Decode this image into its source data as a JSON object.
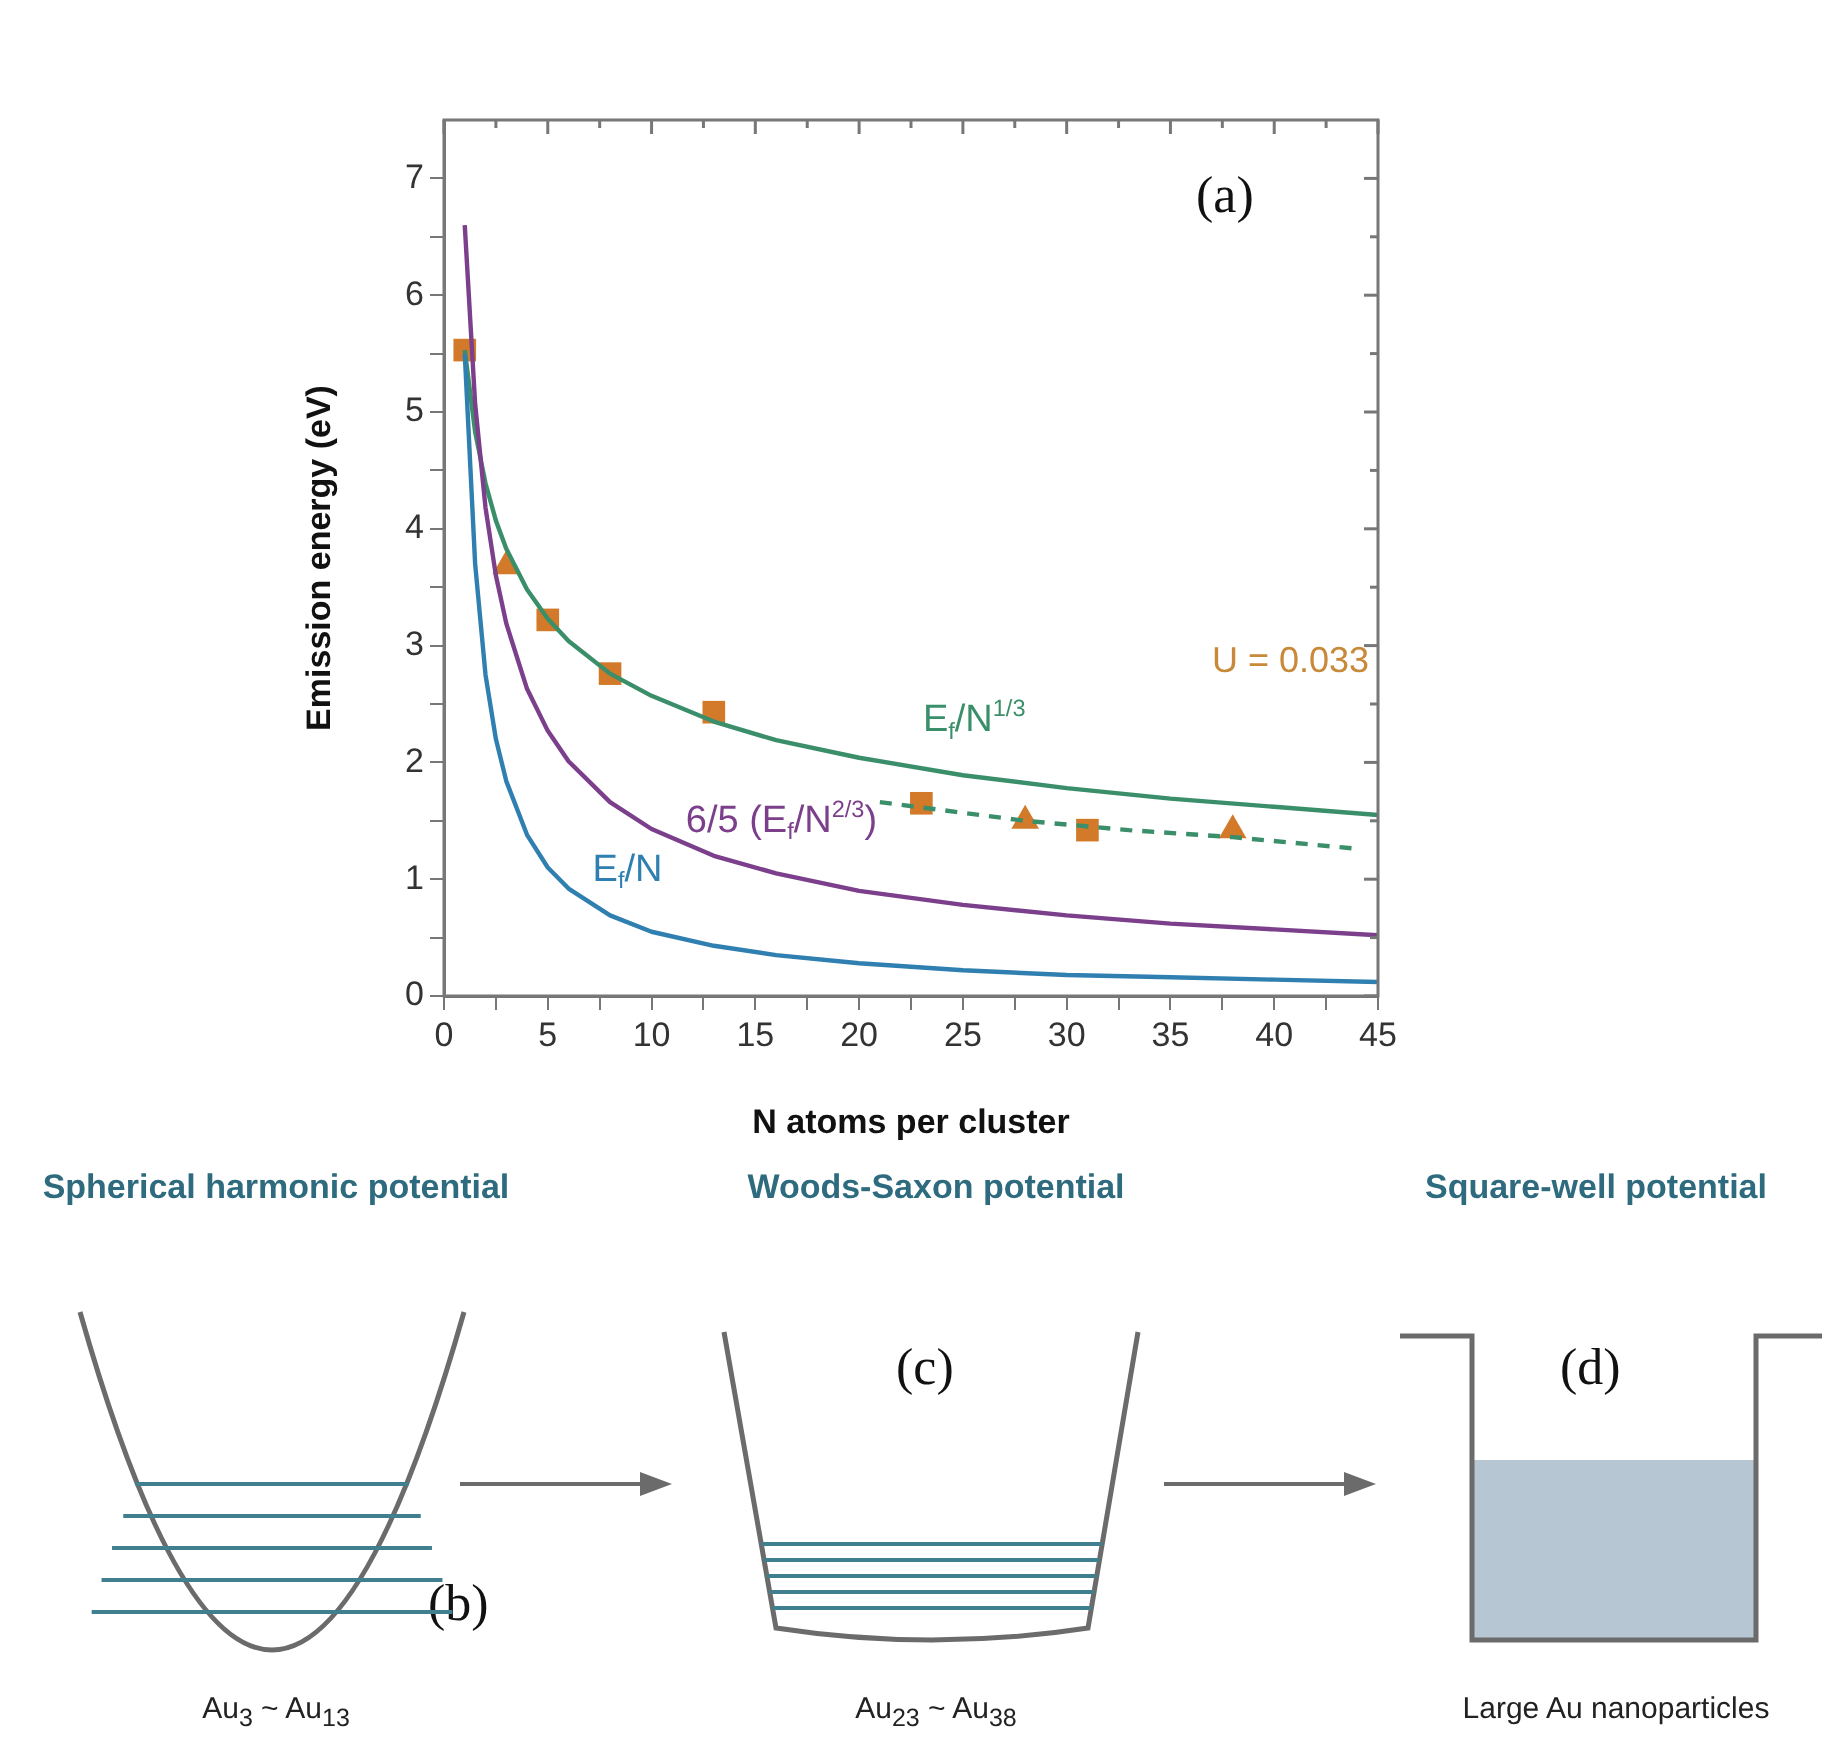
{
  "chart_data": {
    "type": "line",
    "xlabel": "N atoms per cluster",
    "ylabel": "Emission energy (eV)",
    "xlim": [
      0,
      45
    ],
    "xticks": [
      0,
      {
        "value": 2.5,
        "label": null
      },
      5,
      {
        "value": 7.5,
        "label": null
      },
      10,
      {
        "value": 12.5,
        "label": null
      },
      15,
      {
        "value": 17.5,
        "label": null
      },
      20,
      {
        "value": 22.5,
        "label": null
      },
      25,
      {
        "value": 27.5,
        "label": null
      },
      30,
      {
        "value": 32.5,
        "label": null
      },
      35,
      {
        "value": 37.5,
        "label": null
      },
      40,
      {
        "value": 42.5,
        "label": null
      },
      45
    ],
    "ylim": [
      0,
      7.5
    ],
    "yticks": [
      0,
      {
        "value": 0.5,
        "label": null
      },
      1,
      {
        "value": 1.5,
        "label": null
      },
      2,
      {
        "value": 2.5,
        "label": null
      },
      3,
      {
        "value": 3.5,
        "label": null
      },
      4,
      {
        "value": 4.5,
        "label": null
      },
      5,
      {
        "value": 5.5,
        "label": null
      },
      6,
      {
        "value": 6.5,
        "label": null
      },
      7
    ],
    "series": [
      {
        "name": "E$_{f}$/N",
        "color": "#2f7fb0",
        "marker": "none",
        "line_style": "solid",
        "x": [
          1,
          1.5,
          2,
          2.5,
          3,
          4,
          5,
          6,
          8,
          10,
          13,
          16,
          20,
          25,
          30,
          35,
          40,
          45
        ],
        "values": [
          5.5,
          3.7,
          2.75,
          2.2,
          1.84,
          1.38,
          1.1,
          0.92,
          0.69,
          0.55,
          0.43,
          0.35,
          0.28,
          0.22,
          0.18,
          0.16,
          0.14,
          0.12
        ]
      },
      {
        "name": "6/5 (E$_{f}$/N$^{2/3}$)",
        "color": "#7b3f8c",
        "marker": "none",
        "line_style": "solid",
        "x": [
          1,
          1.5,
          2,
          2.5,
          3,
          4,
          5,
          6,
          8,
          10,
          13,
          16,
          20,
          25,
          30,
          35,
          40,
          45
        ],
        "values": [
          6.6,
          5.07,
          4.18,
          3.6,
          3.19,
          2.63,
          2.27,
          2.01,
          1.66,
          1.43,
          1.2,
          1.05,
          0.9,
          0.78,
          0.69,
          0.62,
          0.57,
          0.52
        ]
      },
      {
        "name": "E$_{f}$/N$^{1/3}$",
        "color": "#3a8f6a",
        "marker": "none",
        "line_style": "solid",
        "x": [
          1,
          1.5,
          2,
          2.5,
          3,
          4,
          5,
          6,
          8,
          10,
          13,
          16,
          20,
          25,
          30,
          35,
          40,
          45
        ],
        "values": [
          5.53,
          4.83,
          4.39,
          4.07,
          3.83,
          3.48,
          3.23,
          3.04,
          2.76,
          2.57,
          2.35,
          2.19,
          2.04,
          1.89,
          1.78,
          1.69,
          1.62,
          1.55
        ]
      },
      {
        "color": "#3a8f6a",
        "marker": "none",
        "line_style": "dashed",
        "x": [
          21,
          28,
          33,
          38,
          44
        ],
        "values": [
          1.66,
          1.5,
          1.42,
          1.36,
          1.26
        ]
      },
      {
        "type": "scatter",
        "color": "#d27a2a",
        "marker": "square",
        "x": [
          1,
          5,
          8,
          13,
          23,
          31
        ],
        "values": [
          5.53,
          3.22,
          2.76,
          2.43,
          1.65,
          1.42
        ]
      },
      {
        "type": "scatter",
        "color": "#d27a2a",
        "marker": "triangle",
        "x": [
          3,
          28,
          38
        ],
        "values": [
          3.68,
          1.5,
          1.42
        ]
      }
    ],
    "annotations": [
      "U = 0.033",
      "(a)",
      "Spherical harmonic potential",
      "Woods-Saxon potential",
      "Square-well potential",
      "(b)",
      "(c)",
      "(d)",
      "Au$_{3}$ ~ Au$_{13}$",
      "Au$_{23}$ ~ Au$_{38}$",
      "Large Au nanoparticles"
    ]
  }
}
